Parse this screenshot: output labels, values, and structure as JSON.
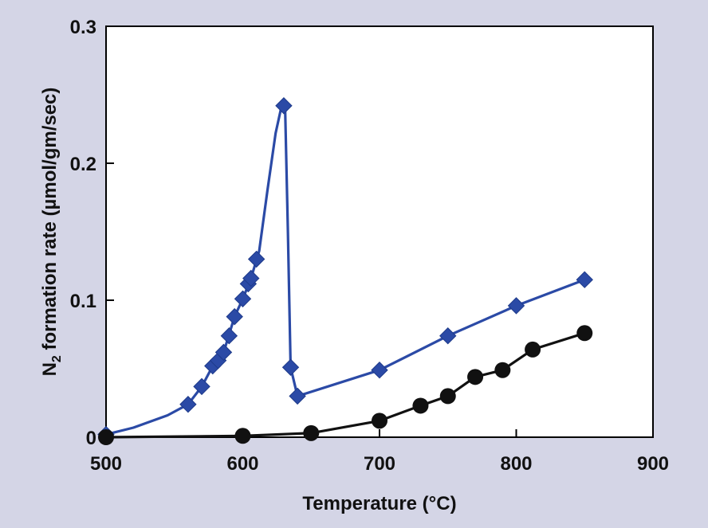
{
  "chart_data": {
    "type": "line",
    "title": "",
    "xlabel": "Temperature (°C)",
    "ylabel_main": "N",
    "ylabel_sub": "2",
    "ylabel_rest": " formation rate (µmol/gm/sec)",
    "xlim": [
      500,
      900
    ],
    "ylim": [
      0,
      0.3
    ],
    "xticks": [
      500,
      600,
      700,
      800,
      900
    ],
    "xtick_labels": [
      "500",
      "600",
      "700",
      "800",
      "900"
    ],
    "yticks": [
      0,
      0.1,
      0.2,
      0.3
    ],
    "ytick_labels": [
      "0",
      "0.1",
      "0.2",
      "0.3"
    ],
    "grid": false,
    "series": [
      {
        "marker": "diamond",
        "color": "#2b4aa6",
        "points": [
          [
            500,
            0.002
          ],
          [
            560,
            0.024
          ],
          [
            570,
            0.037
          ],
          [
            578,
            0.052
          ],
          [
            582,
            0.056
          ],
          [
            586,
            0.062
          ],
          [
            590,
            0.074
          ],
          [
            594,
            0.088
          ],
          [
            600,
            0.101
          ],
          [
            604,
            0.112
          ],
          [
            606,
            0.116
          ],
          [
            610,
            0.13
          ],
          [
            630,
            0.242
          ],
          [
            635,
            0.051
          ],
          [
            640,
            0.03
          ],
          [
            700,
            0.049
          ],
          [
            750,
            0.074
          ],
          [
            800,
            0.096
          ],
          [
            850,
            0.115
          ]
        ],
        "curve": [
          [
            500,
            0.002
          ],
          [
            520,
            0.007
          ],
          [
            545,
            0.016
          ],
          [
            560,
            0.024
          ],
          [
            570,
            0.037
          ],
          [
            578,
            0.052
          ],
          [
            586,
            0.062
          ],
          [
            594,
            0.088
          ],
          [
            600,
            0.101
          ],
          [
            606,
            0.116
          ],
          [
            612,
            0.136
          ],
          [
            618,
            0.18
          ],
          [
            624,
            0.222
          ],
          [
            628,
            0.24
          ],
          [
            631,
            0.238
          ],
          [
            633,
            0.15
          ],
          [
            635,
            0.051
          ],
          [
            640,
            0.03
          ],
          [
            700,
            0.049
          ],
          [
            750,
            0.074
          ],
          [
            800,
            0.096
          ],
          [
            850,
            0.115
          ]
        ]
      },
      {
        "marker": "circle",
        "color": "#111111",
        "points": [
          [
            500,
            0.0
          ],
          [
            600,
            0.001
          ],
          [
            650,
            0.003
          ],
          [
            700,
            0.012
          ],
          [
            730,
            0.023
          ],
          [
            750,
            0.03
          ],
          [
            770,
            0.044
          ],
          [
            790,
            0.049
          ],
          [
            812,
            0.064
          ],
          [
            850,
            0.076
          ]
        ],
        "curve": [
          [
            500,
            0.0
          ],
          [
            600,
            0.001
          ],
          [
            650,
            0.003
          ],
          [
            700,
            0.012
          ],
          [
            730,
            0.023
          ],
          [
            750,
            0.03
          ],
          [
            770,
            0.044
          ],
          [
            790,
            0.049
          ],
          [
            812,
            0.064
          ],
          [
            850,
            0.076
          ]
        ]
      }
    ]
  }
}
